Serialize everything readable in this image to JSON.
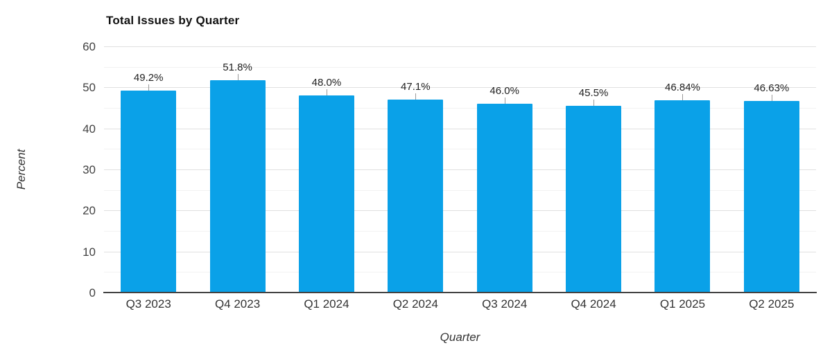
{
  "chart_data": {
    "type": "bar",
    "title": "Total Issues by Quarter",
    "xlabel": "Quarter",
    "ylabel": "Percent",
    "categories": [
      "Q3 2023",
      "Q4 2023",
      "Q1 2024",
      "Q2 2024",
      "Q3 2024",
      "Q4 2024",
      "Q1 2025",
      "Q2 2025"
    ],
    "values": [
      49.2,
      51.8,
      48.0,
      47.1,
      46.0,
      45.5,
      46.84,
      46.63
    ],
    "value_labels": [
      "49.2%",
      "51.8%",
      "48.0%",
      "47.1%",
      "46.0%",
      "45.5%",
      "46.84%",
      "46.63%"
    ],
    "ylim": [
      0,
      60
    ],
    "ytick_step": 10,
    "yminor_step": 5,
    "ytick_labels": [
      "0",
      "10",
      "20",
      "30",
      "40",
      "50",
      "60"
    ],
    "grid": true,
    "legend": "none",
    "colors": {
      "bar": "#0aa1e8",
      "major_grid": "#e0e0e0",
      "minor_grid": "#f2f2f2",
      "axis_line": "#424242",
      "leader_line": "#999999"
    }
  }
}
